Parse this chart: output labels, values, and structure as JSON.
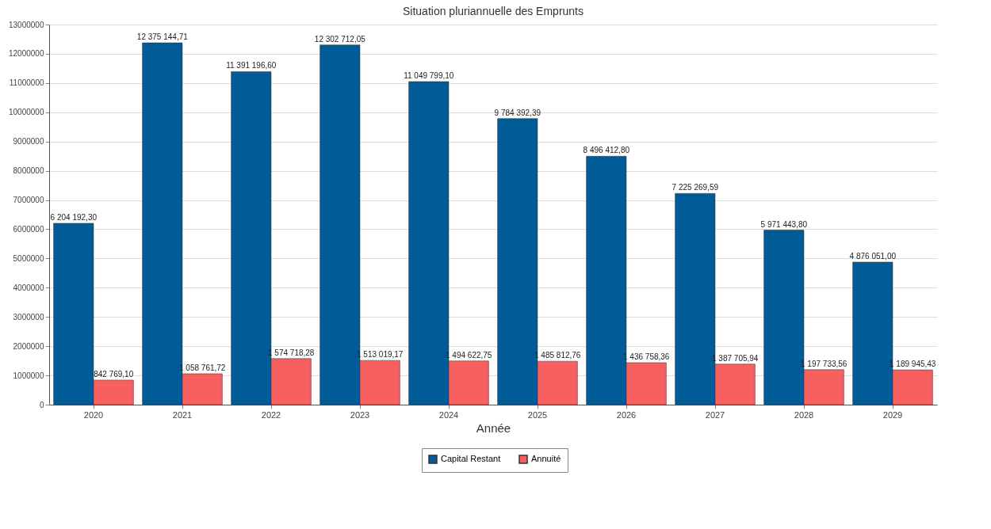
{
  "chart_data": {
    "type": "bar",
    "title": "Situation pluriannuelle des Emprunts",
    "xlabel": "Année",
    "categories": [
      "2020",
      "2021",
      "2022",
      "2023",
      "2024",
      "2025",
      "2026",
      "2027",
      "2028",
      "2029"
    ],
    "series": [
      {
        "name": "Capital Restant",
        "color": "#005b96",
        "values": [
          6204192.3,
          12375144.71,
          11391196.6,
          12302712.05,
          11049799.1,
          9784392.39,
          8496412.8,
          7225269.59,
          5971443.8,
          4876051.0
        ],
        "value_labels": [
          "6 204 192,30",
          "12 375 144,71",
          "11 391 196,60",
          "12 302 712,05",
          "11 049 799,10",
          "9 784 392,39",
          "8 496 412,80",
          "7 225 269,59",
          "5 971 443,80",
          "4 876 051,00"
        ]
      },
      {
        "name": "Annuité",
        "color": "#f85f5f",
        "values": [
          842769.1,
          1058761.72,
          1574718.28,
          1513019.17,
          1494622.75,
          1485812.76,
          1436758.36,
          1387705.94,
          1197733.56,
          1189945.43
        ],
        "value_labels": [
          "842 769,10",
          "1 058 761,72",
          "1 574 718,28",
          "1 513 019,17",
          "1 494 622,75",
          "1 485 812,76",
          "1 436 758,36",
          "1 387 705,94",
          "1 197 733,56",
          "1 189 945,43"
        ]
      }
    ],
    "ylim": [
      0,
      13000000
    ],
    "yticks": [
      0,
      1000000,
      2000000,
      3000000,
      4000000,
      5000000,
      6000000,
      7000000,
      8000000,
      9000000,
      10000000,
      11000000,
      12000000,
      13000000
    ],
    "grid": "y",
    "legend": "bottom"
  }
}
